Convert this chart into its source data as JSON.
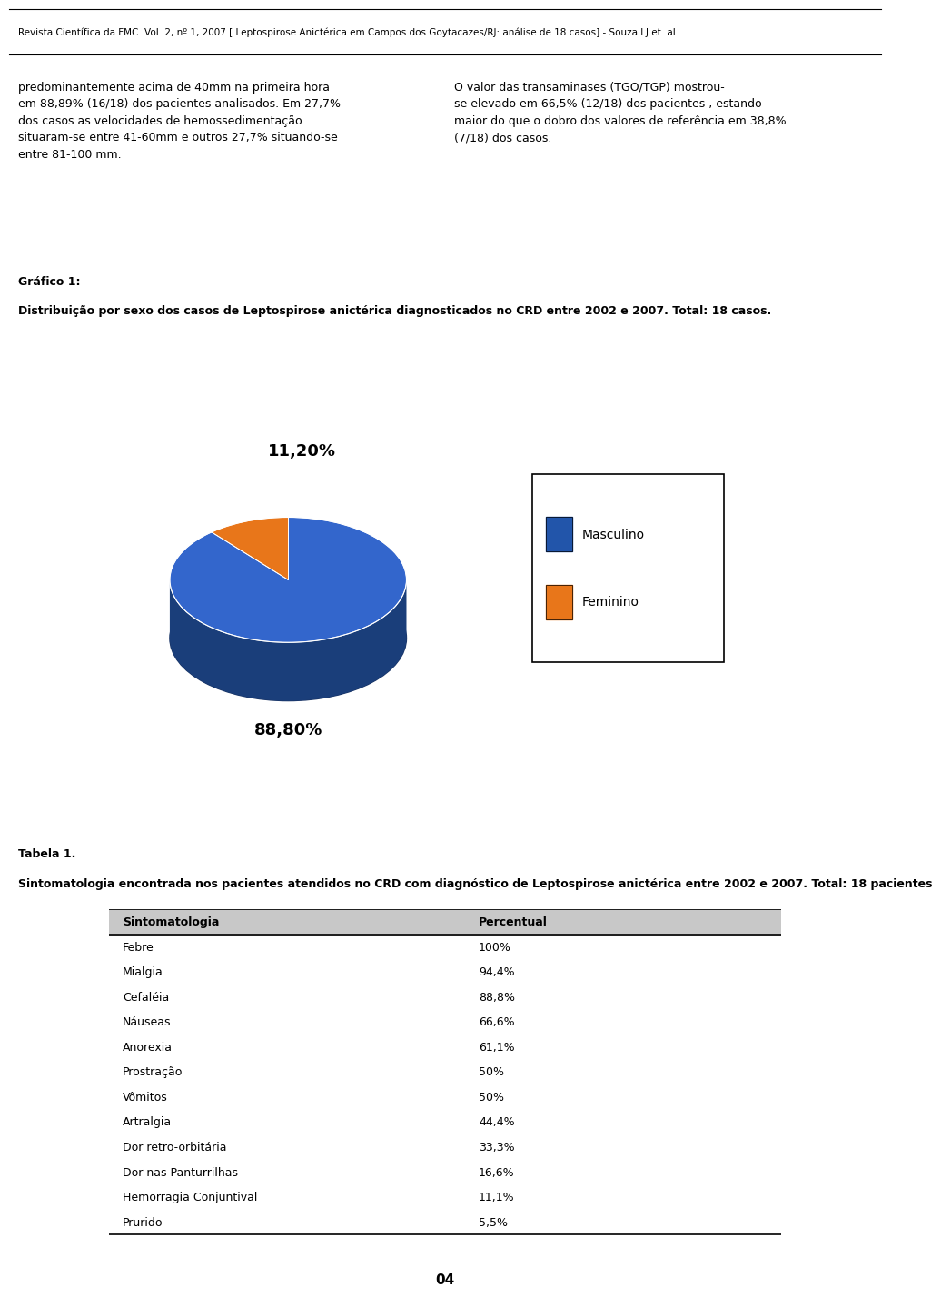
{
  "header_text": "Revista Científica da FMC. Vol. 2, nº 1, 2007 [ Leptospirose Anictérica em Campos dos Goytacazes/RJ: análise de 18 casos] - Souza LJ et. al.",
  "left_paragraph": "predominantemente acima de 40mm na primeira hora\nem 88,89% (16/18) dos pacientes analisados. Em 27,7%\ndos casos as velocidades de hemossedimentação\nsituaram-se entre 41-60mm e outros 27,7% situando-se\nentre 81-100 mm.",
  "right_paragraph": "O valor das transaminases (TGO/TGP) mostrou-\nse elevado em 66,5% (12/18) dos pacientes , estando\nmaior do que o dobro dos valores de referência em 38,8%\n(7/18) dos casos.",
  "grafico_label": "Gráfico 1:",
  "grafico_subtitle": "Distribuição por sexo dos casos de Leptospirose anictérica diagnosticados no CRD entre 2002 e 2007. Total: 18 casos.",
  "pie_values": [
    88.8,
    11.2
  ],
  "pie_labels": [
    "88,80%",
    "11,20%"
  ],
  "pie_colors_top": [
    "#3366CC",
    "#E8761A"
  ],
  "pie_colors_side": [
    "#1A3E7A",
    "#B05010"
  ],
  "pie_colors_bottom": [
    "#1A3566",
    "#8B4000"
  ],
  "legend_labels": [
    "Masculino",
    "Feminino"
  ],
  "legend_colors": [
    "#2255AA",
    "#E8761A"
  ],
  "tabela_label": "Tabela 1.",
  "tabela_subtitle": "Sintomatologia encontrada nos pacientes atendidos no CRD com diagnóstico de Leptospirose anictérica entre 2002 e 2007. Total: 18 pacientes",
  "table_headers": [
    "Sintomatologia",
    "Percentual"
  ],
  "table_rows": [
    [
      "Febre",
      "100%"
    ],
    [
      "Mialgia",
      "94,4%"
    ],
    [
      "Cefaléia",
      "88,8%"
    ],
    [
      "Náuseas",
      "66,6%"
    ],
    [
      "Anorexia",
      "61,1%"
    ],
    [
      "Prostração",
      "50%"
    ],
    [
      "Vômitos",
      "50%"
    ],
    [
      "Artralgia",
      "44,4%"
    ],
    [
      "Dor retro-orbitária",
      "33,3%"
    ],
    [
      "Dor nas Panturrilhas",
      "16,6%"
    ],
    [
      "Hemorragia Conjuntival",
      "11,1%"
    ],
    [
      "Prurido",
      "5,5%"
    ]
  ],
  "page_number": "04",
  "bg_color": "#FFFFFF",
  "table_header_bg": "#C8C8C8",
  "pie_bg": "#D4D4D4"
}
